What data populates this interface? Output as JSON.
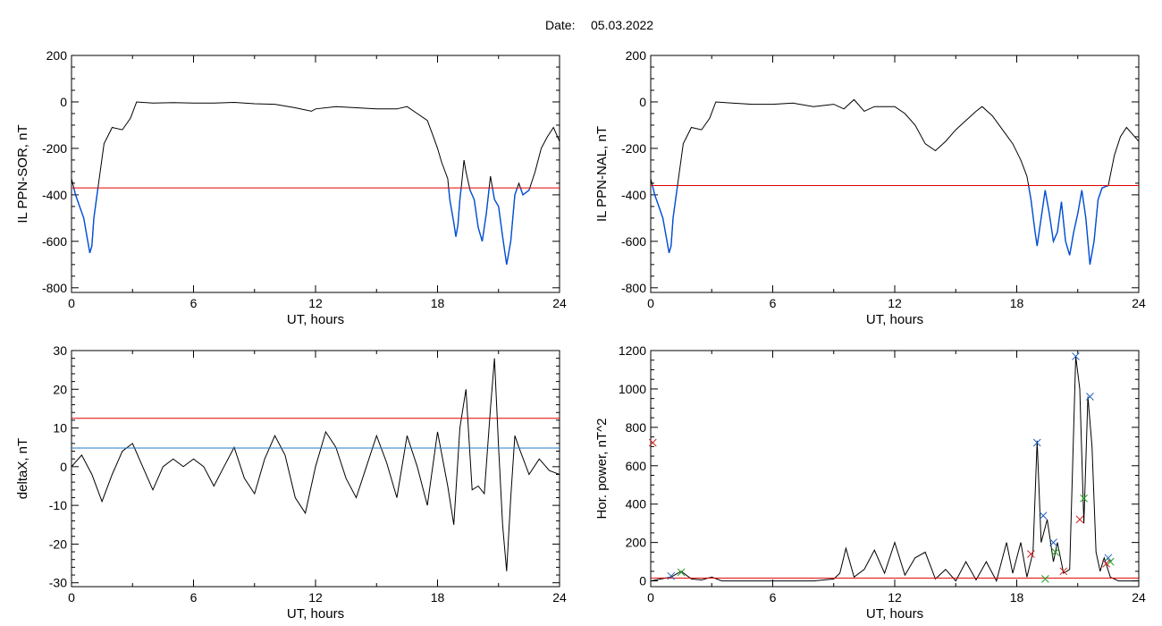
{
  "figure": {
    "date_label": "Date:",
    "date_value": "05.03.2022"
  },
  "colors": {
    "trace": "#000000",
    "threshold_red": "#e00000",
    "threshold_blue": "#1e78c8",
    "highlight_blue": "#0050d8",
    "marker_blue": "#2060c0",
    "marker_red": "#d02020",
    "marker_green": "#20a020"
  },
  "chart_data": [
    {
      "id": "il-sor",
      "type": "line",
      "xlabel": "UT, hours",
      "ylabel": "IL PPN-SOR, nT",
      "xlim": [
        0,
        24
      ],
      "ylim": [
        -820,
        200
      ],
      "xticks": [
        0,
        6,
        12,
        18,
        24
      ],
      "yticks": [
        200,
        0,
        -200,
        -400,
        -600,
        -800
      ],
      "minor_x": 2,
      "minor_y": 4,
      "threshold": -370,
      "highlight_below": true,
      "x": [
        0,
        0.2,
        0.4,
        0.6,
        0.8,
        0.9,
        1.0,
        1.1,
        1.3,
        1.6,
        2.0,
        2.5,
        2.9,
        3.2,
        4,
        5,
        6,
        7,
        8,
        9,
        10,
        11,
        11.8,
        12,
        13,
        14,
        15,
        16,
        16.5,
        17,
        17.5,
        17.8,
        18.0,
        18.2,
        18.5,
        18.6,
        18.8,
        18.9,
        19.0,
        19.1,
        19.2,
        19.3,
        19.4,
        19.6,
        19.8,
        20.0,
        20.2,
        20.4,
        20.6,
        20.8,
        21.0,
        21.2,
        21.4,
        21.6,
        21.8,
        22.0,
        22.2,
        22.5,
        22.8,
        23.1,
        23.4,
        23.7,
        24.0
      ],
      "y": [
        -330,
        -400,
        -450,
        -500,
        -600,
        -650,
        -620,
        -500,
        -370,
        -180,
        -110,
        -120,
        -70,
        0,
        -5,
        -3,
        -5,
        -5,
        -2,
        -8,
        -10,
        -25,
        -40,
        -30,
        -20,
        -25,
        -30,
        -30,
        -20,
        -50,
        -80,
        -150,
        -200,
        -260,
        -330,
        -420,
        -520,
        -580,
        -530,
        -420,
        -340,
        -250,
        -300,
        -380,
        -420,
        -540,
        -600,
        -480,
        -320,
        -420,
        -450,
        -580,
        -700,
        -600,
        -400,
        -350,
        -400,
        -380,
        -300,
        -200,
        -150,
        -110,
        -170
      ]
    },
    {
      "id": "il-nal",
      "type": "line",
      "xlabel": "UT, hours",
      "ylabel": "IL PPN-NAL, nT",
      "xlim": [
        0,
        24
      ],
      "ylim": [
        -820,
        200
      ],
      "xticks": [
        0,
        6,
        12,
        18,
        24
      ],
      "yticks": [
        200,
        0,
        -200,
        -400,
        -600,
        -800
      ],
      "minor_x": 2,
      "minor_y": 4,
      "threshold": -360,
      "highlight_below": true,
      "x": [
        0,
        0.2,
        0.4,
        0.6,
        0.8,
        0.9,
        1.0,
        1.1,
        1.3,
        1.6,
        2.0,
        2.5,
        2.9,
        3.2,
        4,
        5,
        6,
        7,
        8,
        9,
        9.5,
        10,
        10.5,
        11,
        12,
        12.5,
        13,
        13.5,
        14,
        14.5,
        15,
        15.5,
        16,
        16.3,
        16.8,
        17.3,
        17.8,
        18.2,
        18.5,
        18.7,
        18.9,
        19.0,
        19.2,
        19.4,
        19.6,
        19.8,
        20.0,
        20.2,
        20.4,
        20.6,
        20.8,
        21.0,
        21.2,
        21.4,
        21.6,
        21.8,
        22.0,
        22.2,
        22.5,
        22.8,
        23.1,
        23.4,
        23.7,
        24.0
      ],
      "y": [
        -330,
        -400,
        -450,
        -500,
        -600,
        -650,
        -620,
        -500,
        -370,
        -180,
        -110,
        -120,
        -70,
        0,
        -5,
        -10,
        -10,
        -5,
        -20,
        -10,
        -30,
        10,
        -40,
        -20,
        -20,
        -50,
        -100,
        -180,
        -210,
        -170,
        -120,
        -80,
        -40,
        -20,
        -60,
        -120,
        -180,
        -250,
        -320,
        -420,
        -560,
        -620,
        -500,
        -380,
        -480,
        -600,
        -560,
        -430,
        -600,
        -660,
        -560,
        -480,
        -380,
        -500,
        -700,
        -600,
        -420,
        -370,
        -360,
        -230,
        -150,
        -110,
        -140,
        -170
      ]
    },
    {
      "id": "deltax",
      "type": "line",
      "xlabel": "UT, hours",
      "ylabel": "deltaX, nT",
      "xlim": [
        0,
        24
      ],
      "ylim": [
        -31,
        30
      ],
      "xticks": [
        0,
        6,
        12,
        18,
        24
      ],
      "yticks": [
        30,
        20,
        10,
        0,
        -10,
        -20,
        -30
      ],
      "minor_x": 2,
      "minor_y": 5,
      "threshold": 12.5,
      "threshold2": 4.8,
      "highlight_below": false,
      "x": [
        0,
        0.5,
        1.0,
        1.5,
        2.0,
        2.5,
        3.0,
        3.5,
        4.0,
        4.5,
        5.0,
        5.5,
        6.0,
        6.5,
        7.0,
        7.5,
        8.0,
        8.5,
        9.0,
        9.5,
        10.0,
        10.5,
        11.0,
        11.5,
        12.0,
        12.5,
        13.0,
        13.5,
        14.0,
        14.5,
        15.0,
        15.5,
        16.0,
        16.5,
        17.0,
        17.5,
        18.0,
        18.5,
        18.8,
        19.1,
        19.4,
        19.7,
        20.0,
        20.3,
        20.6,
        20.8,
        21.0,
        21.2,
        21.4,
        21.6,
        21.8,
        22.0,
        22.5,
        23.0,
        23.5,
        24.0
      ],
      "y": [
        0,
        3,
        -2,
        -9,
        -2,
        4,
        6,
        0,
        -6,
        0,
        2,
        0,
        2,
        0,
        -5,
        0,
        5,
        -3,
        -7,
        2,
        8,
        3,
        -8,
        -12,
        0,
        9,
        5,
        -3,
        -8,
        0,
        8,
        1,
        -8,
        8,
        0,
        -10,
        9,
        -5,
        -15,
        10,
        20,
        -6,
        -5,
        -7,
        15,
        28,
        5,
        -15,
        -27,
        -8,
        8,
        5,
        -2,
        2,
        -1,
        -2
      ]
    },
    {
      "id": "hor-power",
      "type": "line",
      "xlabel": "UT, hours",
      "ylabel": "Hor. power, nT^2",
      "xlim": [
        0,
        24
      ],
      "ylim": [
        -30,
        1200
      ],
      "xticks": [
        0,
        6,
        12,
        18,
        24
      ],
      "yticks": [
        1200,
        1000,
        800,
        600,
        400,
        200,
        0
      ],
      "minor_x": 2,
      "minor_y": 4,
      "threshold": 15,
      "highlight_below": false,
      "x": [
        0,
        0.5,
        1.0,
        1.5,
        2.0,
        2.5,
        3.0,
        3.5,
        4,
        5,
        6,
        7,
        8,
        9,
        9.3,
        9.6,
        10,
        10.5,
        11,
        11.5,
        12,
        12.5,
        13,
        13.5,
        14,
        14.5,
        15,
        15.5,
        16,
        16.5,
        17,
        17.5,
        17.8,
        18.2,
        18.5,
        18.8,
        19.0,
        19.2,
        19.5,
        19.8,
        20.0,
        20.3,
        20.6,
        20.9,
        21.1,
        21.3,
        21.5,
        21.7,
        21.9,
        22.1,
        22.3,
        22.6,
        23.0,
        23.5,
        24.0
      ],
      "y": [
        0,
        10,
        20,
        50,
        10,
        5,
        20,
        0,
        0,
        0,
        0,
        0,
        0,
        10,
        40,
        170,
        20,
        60,
        160,
        40,
        200,
        30,
        120,
        150,
        10,
        60,
        0,
        100,
        5,
        100,
        0,
        200,
        40,
        200,
        20,
        150,
        730,
        200,
        320,
        100,
        200,
        40,
        60,
        1170,
        1000,
        300,
        960,
        700,
        150,
        50,
        120,
        20,
        0,
        0,
        0
      ],
      "markers": [
        {
          "x": 0.1,
          "y": 720,
          "color": "red"
        },
        {
          "x": 1.0,
          "y": 25,
          "color": "blue"
        },
        {
          "x": 1.5,
          "y": 45,
          "color": "green"
        },
        {
          "x": 18.7,
          "y": 140,
          "color": "red"
        },
        {
          "x": 19.0,
          "y": 720,
          "color": "blue"
        },
        {
          "x": 19.3,
          "y": 340,
          "color": "blue"
        },
        {
          "x": 19.4,
          "y": 10,
          "color": "green"
        },
        {
          "x": 19.8,
          "y": 200,
          "color": "blue"
        },
        {
          "x": 19.9,
          "y": 150,
          "color": "green"
        },
        {
          "x": 20.3,
          "y": 50,
          "color": "red"
        },
        {
          "x": 20.9,
          "y": 1170,
          "color": "blue"
        },
        {
          "x": 21.1,
          "y": 320,
          "color": "red"
        },
        {
          "x": 21.3,
          "y": 430,
          "color": "green"
        },
        {
          "x": 21.6,
          "y": 960,
          "color": "blue"
        },
        {
          "x": 22.5,
          "y": 120,
          "color": "blue"
        },
        {
          "x": 22.6,
          "y": 100,
          "color": "green"
        },
        {
          "x": 22.4,
          "y": 90,
          "color": "red"
        }
      ]
    }
  ]
}
